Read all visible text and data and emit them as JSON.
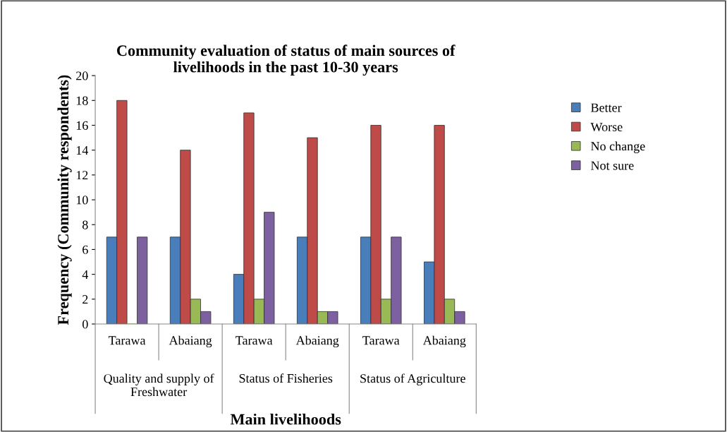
{
  "chart_data": {
    "type": "bar",
    "title": "Community evaluation of status of main sources of\nlivelihoods in the past 10-30 years",
    "xlabel": "Main livelihoods",
    "ylabel": "Frequency (Community respondents)",
    "categories": [
      "Tarawa",
      "Abaiang",
      "Tarawa",
      "Abaiang",
      "Tarawa",
      "Abaiang"
    ],
    "annotations": [
      "Quality and supply of\nFreshwater",
      "Status of Fisheries",
      "Status of Agriculture"
    ],
    "series": [
      {
        "name": "Better",
        "color": "#4a7ebb",
        "values": [
          7,
          7,
          4,
          7,
          7,
          5
        ]
      },
      {
        "name": "Worse",
        "color": "#be4b48",
        "values": [
          18,
          14,
          17,
          15,
          16,
          16
        ]
      },
      {
        "name": "No change",
        "color": "#98b954",
        "values": [
          0,
          2,
          2,
          1,
          2,
          2
        ]
      },
      {
        "name": "Not sure",
        "color": "#7d60a0",
        "values": [
          7,
          1,
          9,
          1,
          7,
          1
        ]
      }
    ],
    "ylim": [
      0,
      20
    ],
    "yticks": [
      0,
      2,
      4,
      6,
      8,
      10,
      12,
      14,
      16,
      18,
      20
    ],
    "grid": false,
    "legend": "right"
  }
}
